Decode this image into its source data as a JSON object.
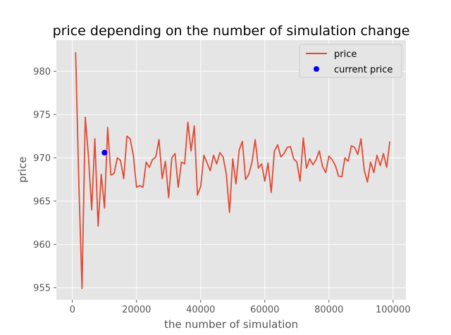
{
  "chart_data": {
    "type": "line",
    "title": "price depending on the number of simulation change",
    "xlabel": "the number of simulation",
    "ylabel": "price",
    "xlim": [
      -5000,
      104000
    ],
    "ylim": [
      953.6,
      983.6
    ],
    "xticks": [
      0,
      20000,
      40000,
      60000,
      80000,
      100000
    ],
    "xtick_labels": [
      "0",
      "20000",
      "40000",
      "60000",
      "80000",
      "100000"
    ],
    "yticks": [
      955,
      960,
      965,
      970,
      975,
      980
    ],
    "ytick_labels": [
      "955",
      "960",
      "965",
      "970",
      "975",
      "980"
    ],
    "grid": true,
    "legend_position": "top-right",
    "series": [
      {
        "name": "price",
        "color": "#e24a33",
        "x": [
          1000,
          2000,
          3000,
          4000,
          5000,
          6000,
          7000,
          8000,
          9000,
          10000,
          11000,
          12000,
          13000,
          14000,
          15000,
          16000,
          17000,
          18000,
          19000,
          20000,
          21000,
          22000,
          23000,
          24000,
          25000,
          26000,
          27000,
          28000,
          29000,
          30000,
          31000,
          32000,
          33000,
          34000,
          35000,
          36000,
          37000,
          38000,
          39000,
          40000,
          41000,
          42000,
          43000,
          44000,
          45000,
          46000,
          47000,
          48000,
          49000,
          50000,
          51000,
          52000,
          53000,
          54000,
          55000,
          56000,
          57000,
          58000,
          59000,
          60000,
          61000,
          62000,
          63000,
          64000,
          65000,
          66000,
          67000,
          68000,
          69000,
          70000,
          71000,
          72000,
          73000,
          74000,
          75000,
          76000,
          77000,
          78000,
          79000,
          80000,
          81000,
          82000,
          83000,
          84000,
          85000,
          86000,
          87000,
          88000,
          89000,
          90000,
          91000,
          92000,
          93000,
          94000,
          95000,
          96000,
          97000,
          98000,
          99000
        ],
        "y": [
          982.2,
          967.0,
          954.9,
          974.7,
          970.2,
          964.0,
          972.2,
          962.1,
          968.1,
          964.2,
          973.5,
          968.0,
          968.2,
          970.0,
          969.7,
          967.6,
          972.5,
          972.2,
          970.3,
          966.6,
          966.8,
          966.6,
          969.5,
          968.9,
          969.8,
          970.1,
          972.1,
          967.6,
          969.6,
          965.4,
          970.0,
          970.5,
          966.6,
          969.5,
          969.3,
          974.1,
          970.8,
          973.7,
          965.7,
          966.7,
          970.3,
          969.4,
          968.5,
          970.3,
          969.3,
          970.6,
          970.1,
          968.1,
          963.7,
          969.9,
          967.0,
          970.9,
          971.9,
          967.5,
          968.1,
          969.5,
          972.1,
          968.8,
          969.3,
          967.3,
          969.4,
          966.0,
          970.8,
          971.5,
          970.1,
          970.5,
          971.2,
          971.3,
          969.9,
          969.5,
          967.3,
          972.3,
          968.8,
          969.9,
          969.2,
          969.8,
          970.8,
          969.0,
          968.3,
          970.2,
          969.8,
          969.1,
          967.9,
          967.8,
          970.0,
          969.6,
          971.4,
          971.2,
          970.4,
          972.2,
          968.6,
          967.2,
          969.5,
          968.3,
          970.3,
          969.1,
          970.5,
          968.9,
          971.9
        ]
      }
    ],
    "points": [
      {
        "name": "current price",
        "color": "#0000ff",
        "x": 10000,
        "y": 970.6
      }
    ],
    "legend": [
      {
        "label": "price",
        "kind": "line",
        "color": "#e24a33"
      },
      {
        "label": "current price",
        "kind": "marker",
        "color": "#0000ff"
      }
    ]
  }
}
